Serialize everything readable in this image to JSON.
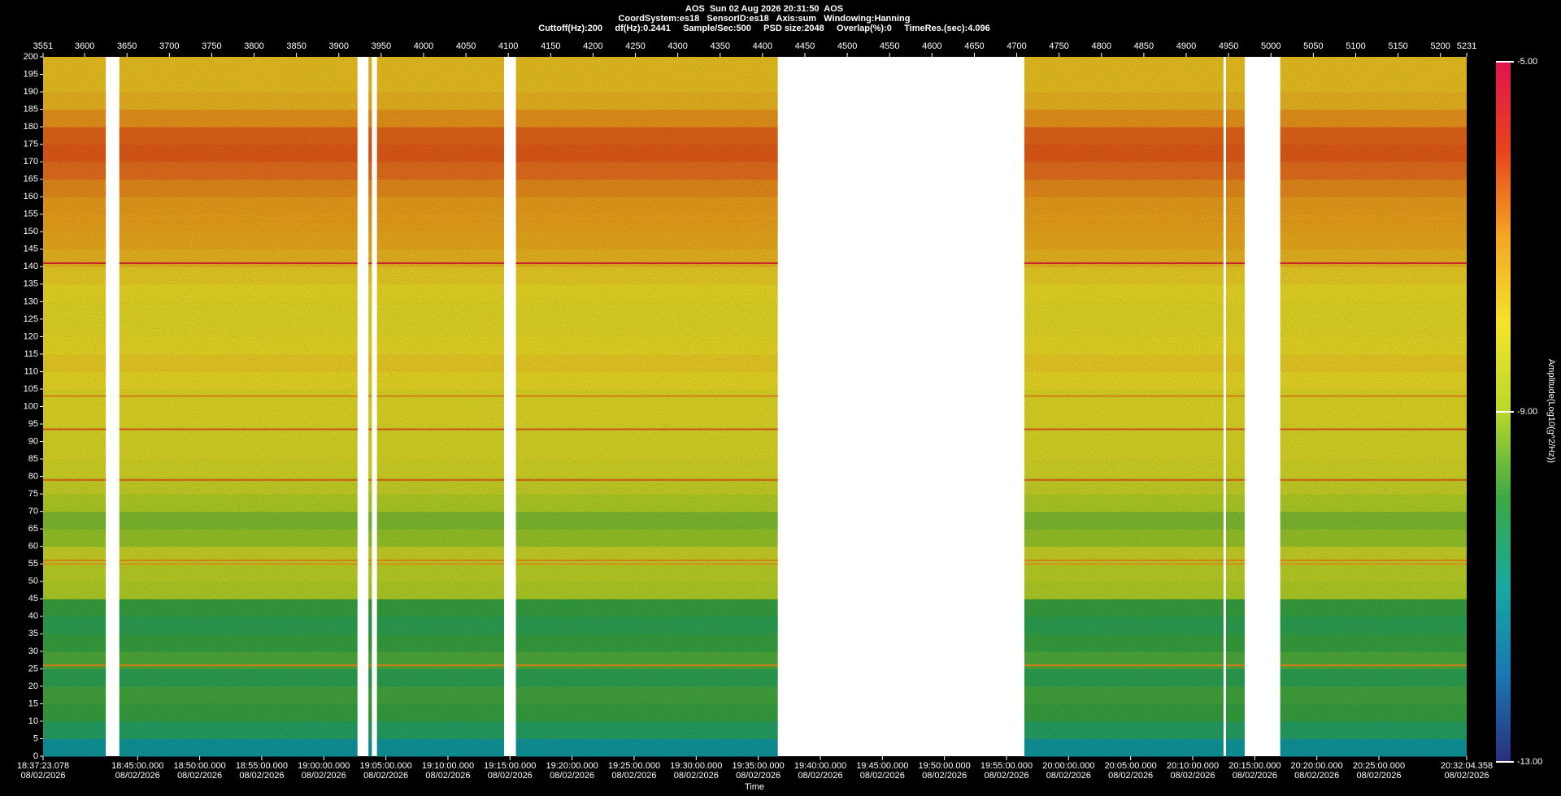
{
  "chart_data": {
    "type": "spectrogram",
    "header": [
      "AOS  Sun 02 Aug 2026 20:31:50  AOS",
      "CoordSystem:es18   SensorID:es18   Axis:sum   Windowing:Hanning",
      "Cuttoff(Hz):200     df(Hz):0.2441     Sample/Sec:500     PSD size:2048     Overlap(%):0     TimeRes.(sec):4.096"
    ],
    "xlabel": "Time",
    "colorbar_label": "Amplitude(Log10(g^2/Hz))",
    "xlim": [
      3551,
      5231
    ],
    "xticks": [
      3551,
      3600,
      3650,
      3700,
      3750,
      3800,
      3850,
      3900,
      3950,
      4000,
      4050,
      4100,
      4150,
      4200,
      4250,
      4300,
      4350,
      4400,
      4450,
      4500,
      4550,
      4600,
      4650,
      4700,
      4750,
      4800,
      4850,
      4900,
      4950,
      5000,
      5050,
      5100,
      5150,
      5200,
      5231
    ],
    "time_ticks": [
      {
        "value": 3551,
        "label": "18:37:23.078"
      },
      {
        "value": 3662.55,
        "label": "18:45:00.000"
      },
      {
        "value": 3735.79,
        "label": "18:50:00.000"
      },
      {
        "value": 3809.03,
        "label": "18:55:00.000"
      },
      {
        "value": 3882.28,
        "label": "19:00:00.000"
      },
      {
        "value": 3955.52,
        "label": "19:05:00.000"
      },
      {
        "value": 4028.76,
        "label": "19:10:00.000"
      },
      {
        "value": 4102.0,
        "label": "19:15:00.000"
      },
      {
        "value": 4175.24,
        "label": "19:20:00.000"
      },
      {
        "value": 4248.49,
        "label": "19:25:00.000"
      },
      {
        "value": 4321.73,
        "label": "19:30:00.000"
      },
      {
        "value": 4394.97,
        "label": "19:35:00.000"
      },
      {
        "value": 4468.21,
        "label": "19:40:00.000"
      },
      {
        "value": 4541.46,
        "label": "19:45:00.000"
      },
      {
        "value": 4614.7,
        "label": "19:50:00.000"
      },
      {
        "value": 4687.94,
        "label": "19:55:00.000"
      },
      {
        "value": 4761.18,
        "label": "20:00:00.000"
      },
      {
        "value": 4834.42,
        "label": "20:05:00.000"
      },
      {
        "value": 4907.67,
        "label": "20:10:00.000"
      },
      {
        "value": 4980.91,
        "label": "20:15:00.000"
      },
      {
        "value": 5054.15,
        "label": "20:20:00.000"
      },
      {
        "value": 5127.39,
        "label": "20:25:00.000"
      },
      {
        "value": 5231,
        "label": "20:32:04.358"
      }
    ],
    "time_tick_dates": [
      "08/02/2026",
      "08/02/2026",
      "08/02/2026",
      "08/02/2026",
      "08/02/2026",
      "08/02/2026",
      "08/02/2026",
      "08/02/2026",
      "08/02/2026",
      "08/02/2026",
      "08/02/2026",
      "08/02/2026",
      "08/02/2026",
      "08/02/2026",
      "08/02/2026",
      "08/02/2026",
      "08/02/2026",
      "08/02/2026",
      "08/02/2026",
      "08/02/2026",
      "08/02/2026",
      "08/02/2026",
      "08/02/2026"
    ],
    "ylim": [
      0,
      200
    ],
    "yticks": [
      0,
      5,
      10,
      15,
      20,
      25,
      30,
      35,
      40,
      45,
      50,
      55,
      60,
      65,
      70,
      75,
      80,
      85,
      90,
      95,
      100,
      105,
      110,
      115,
      120,
      125,
      130,
      135,
      140,
      145,
      150,
      155,
      160,
      165,
      170,
      175,
      180,
      185,
      190,
      195,
      200
    ],
    "segments": [
      [
        3551,
        3625
      ],
      [
        3641,
        3922
      ],
      [
        3935,
        3939
      ],
      [
        3945,
        4095
      ],
      [
        4109,
        4418
      ],
      [
        4709,
        4944
      ],
      [
        4947,
        4969
      ],
      [
        5011,
        5231
      ]
    ],
    "freq_bins": [
      0,
      5,
      10,
      15,
      20,
      25,
      30,
      35,
      40,
      45,
      50,
      55,
      60,
      65,
      70,
      75,
      80,
      85,
      90,
      95,
      100,
      105,
      110,
      115,
      120,
      125,
      130,
      135,
      140,
      145,
      150,
      155,
      160,
      165,
      170,
      175,
      180,
      185,
      190,
      195,
      200
    ],
    "amplitude": [
      -11.2,
      -10.4,
      -10.0,
      -9.9,
      -10.2,
      -9.8,
      -10.0,
      -10.2,
      -10.0,
      -9.0,
      -8.8,
      -8.6,
      -9.2,
      -9.4,
      -9.0,
      -8.6,
      -8.4,
      -8.3,
      -8.3,
      -8.2,
      -8.2,
      -8.0,
      -7.8,
      -8.0,
      -8.1,
      -8.1,
      -8.0,
      -7.8,
      -7.4,
      -7.2,
      -7.1,
      -7.0,
      -6.8,
      -6.5,
      -6.3,
      -6.4,
      -6.9,
      -7.4,
      -7.6,
      -7.6
    ],
    "tonal_lines": {
      "frequencies": [
        141,
        93.5,
        79,
        56,
        55,
        26,
        103,
        162,
        153
      ],
      "values": [
        -5.6,
        -6.3,
        -6.4,
        -6.8,
        -7.0,
        -6.8,
        -6.8,
        -6.8,
        -7.0
      ]
    },
    "clim": [
      -13,
      -5
    ],
    "colorbar_ticks": [
      {
        "value": -5,
        "label": "-5.00"
      },
      {
        "value": -9,
        "label": "-9.00"
      },
      {
        "value": -13,
        "label": "-13.00"
      }
    ],
    "colormap": [
      "#2a2f7e",
      "#1a78b4",
      "#17a8a0",
      "#3aa845",
      "#b8d82a",
      "#f5e32a",
      "#f5a623",
      "#e8421c",
      "#e0144e"
    ]
  }
}
